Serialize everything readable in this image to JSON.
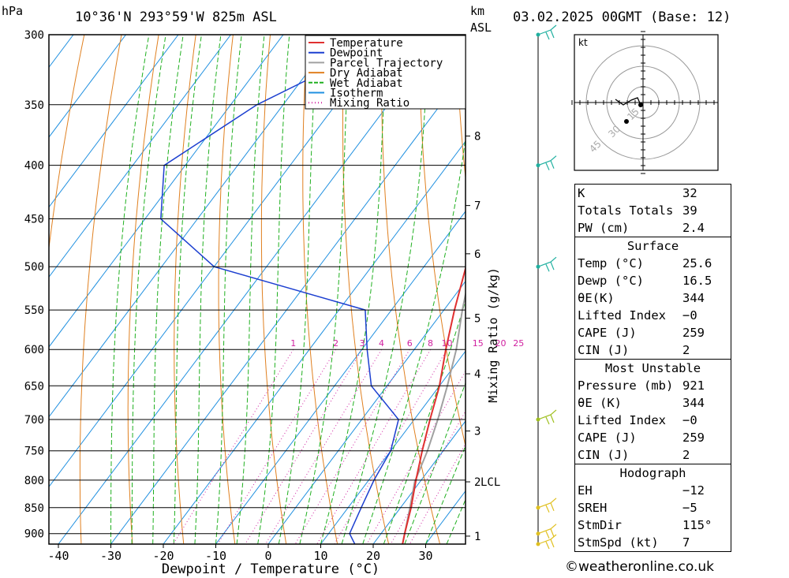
{
  "header": {
    "hpa_unit": "hPa",
    "location": "10°36'N 293°59'W 825m ASL",
    "km_label": "km",
    "asl_label": "ASL",
    "datetime": "03.02.2025 00GMT (Base: 12)"
  },
  "chart_data": {
    "type": "skew-t log-p diagram",
    "xlabel": "Dewpoint / Temperature (°C)",
    "ylabel": "Mixing Ratio (g/kg)",
    "pressure_levels": [
      300,
      350,
      400,
      450,
      500,
      550,
      600,
      650,
      700,
      750,
      800,
      850,
      900
    ],
    "temperature_ticks": [
      -40,
      -30,
      -20,
      -10,
      0,
      10,
      20,
      30
    ],
    "km_ticks": [
      {
        "km": 1,
        "p": 905
      },
      {
        "km": 2,
        "p": 803
      },
      {
        "km": 3,
        "p": 718
      },
      {
        "km": 4,
        "p": 633
      },
      {
        "km": 5,
        "p": 560
      },
      {
        "km": 6,
        "p": 486
      },
      {
        "km": 7,
        "p": 437
      },
      {
        "km": 8,
        "p": 375
      }
    ],
    "lcl_label": "LCL",
    "lcl_pressure": 803,
    "mixing_ratio_labels": [
      "1",
      "2",
      "3",
      "4",
      "6",
      "8",
      "10",
      "15",
      "20",
      "25"
    ],
    "mixing_ratio_values": [
      1,
      2,
      3,
      4,
      6,
      8,
      10,
      15,
      20,
      25
    ],
    "legend": [
      "Temperature",
      "Dewpoint",
      "Parcel Trajectory",
      "Dry Adiabat",
      "Wet Adiabat",
      "Isotherm",
      "Mixing Ratio"
    ],
    "colors": {
      "temperature": "#e03030",
      "dewpoint": "#1c3fd0",
      "parcel": "#a0a0a0",
      "dry_adiabat": "#e08020",
      "wet_adiabat": "#20b020",
      "isotherm": "#2090e0",
      "mixing_ratio": "#d020a0"
    },
    "temperature_profile": [
      {
        "p": 300,
        "t": -31
      },
      {
        "p": 350,
        "t": -23
      },
      {
        "p": 400,
        "t": -14
      },
      {
        "p": 450,
        "t": -8
      },
      {
        "p": 500,
        "t": -2
      },
      {
        "p": 550,
        "t": 2
      },
      {
        "p": 600,
        "t": 6
      },
      {
        "p": 650,
        "t": 10
      },
      {
        "p": 700,
        "t": 13
      },
      {
        "p": 750,
        "t": 16
      },
      {
        "p": 800,
        "t": 19
      },
      {
        "p": 850,
        "t": 22
      },
      {
        "p": 900,
        "t": 24.5
      },
      {
        "p": 921,
        "t": 25.6
      }
    ],
    "dewpoint_profile": [
      {
        "p": 300,
        "t": -48
      },
      {
        "p": 350,
        "t": -65
      },
      {
        "p": 400,
        "t": -74
      },
      {
        "p": 450,
        "t": -67
      },
      {
        "p": 500,
        "t": -50
      },
      {
        "p": 550,
        "t": -15
      },
      {
        "p": 600,
        "t": -9
      },
      {
        "p": 650,
        "t": -3
      },
      {
        "p": 700,
        "t": 7
      },
      {
        "p": 750,
        "t": 10
      },
      {
        "p": 800,
        "t": 11
      },
      {
        "p": 850,
        "t": 12.5
      },
      {
        "p": 900,
        "t": 14
      },
      {
        "p": 921,
        "t": 16.5
      }
    ],
    "parcel_profile": [
      {
        "p": 330,
        "t": -30
      },
      {
        "p": 400,
        "t": -13
      },
      {
        "p": 450,
        "t": -6
      },
      {
        "p": 500,
        "t": -1
      },
      {
        "p": 550,
        "t": 3.5
      },
      {
        "p": 600,
        "t": 8
      },
      {
        "p": 650,
        "t": 11.5
      },
      {
        "p": 700,
        "t": 14.5
      },
      {
        "p": 750,
        "t": 17
      },
      {
        "p": 803,
        "t": 19
      },
      {
        "p": 850,
        "t": 21.8
      },
      {
        "p": 921,
        "t": 25.6
      }
    ],
    "wind_barbs": [
      {
        "p": 300,
        "color": "#20b0a0"
      },
      {
        "p": 400,
        "color": "#20b0a0"
      },
      {
        "p": 500,
        "color": "#20b0a0"
      },
      {
        "p": 700,
        "color": "#a0c020"
      },
      {
        "p": 850,
        "color": "#e0c020"
      },
      {
        "p": 900,
        "color": "#e0c020"
      },
      {
        "p": 921,
        "color": "#e0c020"
      }
    ]
  },
  "hodograph": {
    "unit": "kt",
    "ring_labels": [
      "15",
      "30",
      "45"
    ]
  },
  "stats": {
    "indices": [
      {
        "label": "K",
        "value": "32"
      },
      {
        "label": "Totals Totals",
        "value": "39"
      },
      {
        "label": "PW (cm)",
        "value": "2.4"
      }
    ],
    "surface": {
      "title": "Surface",
      "rows": [
        {
          "label": "Temp (°C)",
          "value": "25.6"
        },
        {
          "label": "Dewp (°C)",
          "value": "16.5"
        },
        {
          "label": "θE(K)",
          "value": "344"
        },
        {
          "label": "Lifted Index",
          "value": "−0"
        },
        {
          "label": "CAPE (J)",
          "value": "259"
        },
        {
          "label": "CIN (J)",
          "value": "2"
        }
      ]
    },
    "most_unstable": {
      "title": "Most Unstable",
      "rows": [
        {
          "label": "Pressure (mb)",
          "value": "921"
        },
        {
          "label": "θE (K)",
          "value": "344"
        },
        {
          "label": "Lifted Index",
          "value": "−0"
        },
        {
          "label": "CAPE (J)",
          "value": "259"
        },
        {
          "label": "CIN (J)",
          "value": "2"
        }
      ]
    },
    "hodograph_stats": {
      "title": "Hodograph",
      "rows": [
        {
          "label": "EH",
          "value": "−12"
        },
        {
          "label": "SREH",
          "value": "−5"
        },
        {
          "label": "StmDir",
          "value": "115°"
        },
        {
          "label": "StmSpd (kt)",
          "value": "7"
        }
      ]
    }
  },
  "footer": {
    "copyright": "©weatheronline.co.uk"
  }
}
